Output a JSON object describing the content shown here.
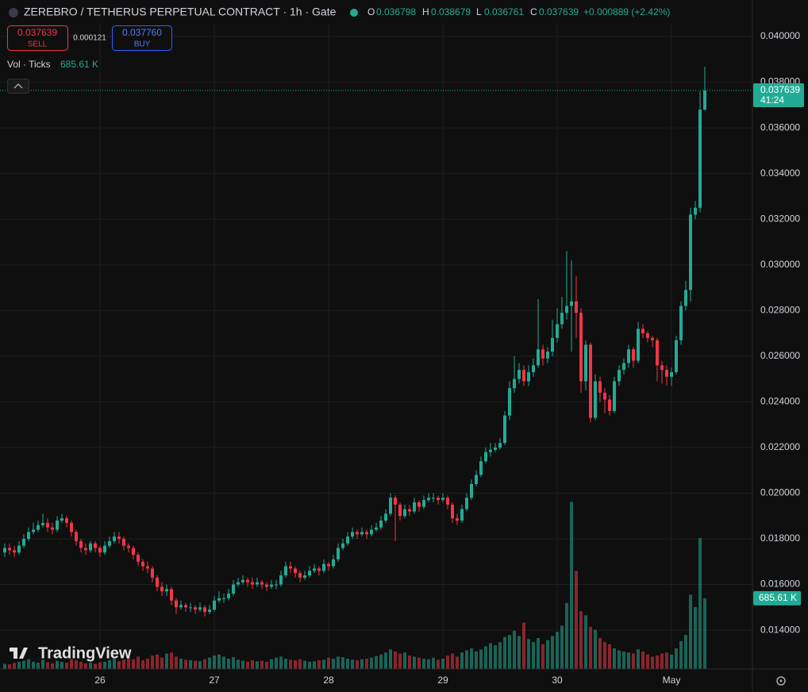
{
  "header": {
    "title": "ZEREBRO / TETHERUS PERPETUAL CONTRACT · 1h · Gate",
    "o": "O",
    "h": "H",
    "l": "L",
    "c": "C",
    "change": "+0.000889 (+2.42%)",
    "sell_label": "SELL",
    "spread": "0.000121",
    "buy_price": "0.037760",
    "buy_label": "BUY",
    "indicator": "Vol · Ticks",
    "logo": "TradingView"
  },
  "chart_data": {
    "type": "candlestick",
    "categories": [
      null,
      null,
      null,
      null,
      null,
      null,
      null,
      null,
      null,
      null,
      null,
      null,
      null,
      null,
      null,
      null,
      null,
      null,
      null,
      null,
      "26",
      null,
      null,
      null,
      null,
      null,
      null,
      null,
      null,
      null,
      null,
      null,
      null,
      null,
      null,
      null,
      null,
      null,
      null,
      null,
      null,
      null,
      null,
      null,
      "27",
      null,
      null,
      null,
      null,
      null,
      null,
      null,
      null,
      null,
      null,
      null,
      null,
      null,
      null,
      null,
      null,
      null,
      null,
      null,
      null,
      null,
      null,
      null,
      "28",
      null,
      null,
      null,
      null,
      null,
      null,
      null,
      null,
      null,
      null,
      null,
      null,
      null,
      null,
      null,
      null,
      null,
      null,
      null,
      null,
      null,
      null,
      null,
      "29",
      null,
      null,
      null,
      null,
      null,
      null,
      null,
      null,
      null,
      null,
      null,
      null,
      null,
      null,
      null,
      null,
      null,
      null,
      null,
      null,
      null,
      null,
      null,
      "30",
      null,
      null,
      null,
      null,
      null,
      null,
      null,
      null,
      null,
      null,
      null,
      null,
      null,
      null,
      null,
      null,
      null,
      null,
      null,
      null,
      null,
      null,
      null,
      "May",
      null,
      null,
      null,
      null,
      null,
      null,
      null
    ],
    "open": [
      0.0174,
      0.0176,
      0.0175,
      0.0174,
      0.0177,
      0.018,
      0.0183,
      0.0184,
      0.0186,
      0.0187,
      0.0185,
      0.0184,
      0.0188,
      0.0189,
      0.0187,
      0.0183,
      0.0179,
      0.0176,
      0.0175,
      0.0178,
      0.0176,
      0.0174,
      0.0177,
      0.0179,
      0.0181,
      0.018,
      0.0177,
      0.0176,
      0.0173,
      0.017,
      0.0168,
      0.0167,
      0.0163,
      0.0159,
      0.0157,
      0.0158,
      0.0153,
      0.015,
      0.0151,
      0.015,
      0.015,
      0.0149,
      0.015,
      0.0148,
      0.0149,
      0.0153,
      0.0154,
      0.0154,
      0.0156,
      0.016,
      0.0161,
      0.0162,
      0.0161,
      0.016,
      0.0161,
      0.016,
      0.0159,
      0.016,
      0.016,
      0.0164,
      0.0168,
      0.0167,
      0.0165,
      0.0163,
      0.0164,
      0.0166,
      0.0167,
      0.0166,
      0.0169,
      0.0168,
      0.0171,
      0.0176,
      0.0178,
      0.0181,
      0.0183,
      0.0182,
      0.0183,
      0.0182,
      0.0184,
      0.0185,
      0.0188,
      0.0191,
      0.0198,
      0.0195,
      0.019,
      0.0193,
      0.0192,
      0.0196,
      0.0194,
      0.0197,
      0.0198,
      0.0198,
      0.0197,
      0.0198,
      0.0195,
      0.0189,
      0.0188,
      0.0193,
      0.0198,
      0.0204,
      0.0208,
      0.0214,
      0.0218,
      0.0219,
      0.022,
      0.0222,
      0.0234,
      0.0246,
      0.025,
      0.0254,
      0.0249,
      0.0253,
      0.0256,
      0.0263,
      0.0259,
      0.0262,
      0.0268,
      0.0274,
      0.0279,
      0.0282,
      0.0284,
      0.0279,
      0.0249,
      0.0265,
      0.0233,
      0.0249,
      0.0244,
      0.0241,
      0.0236,
      0.0249,
      0.0254,
      0.0257,
      0.0263,
      0.0258,
      0.0272,
      0.027,
      0.0268,
      0.0267,
      0.0256,
      0.0254,
      0.0251,
      0.0253,
      0.0267,
      0.0282,
      0.0289,
      0.0322,
      0.0325,
      0.036798
    ],
    "high": [
      0.0178,
      0.0178,
      0.0177,
      0.0179,
      0.0182,
      0.0185,
      0.0187,
      0.0188,
      0.0191,
      0.0189,
      0.0187,
      0.019,
      0.0191,
      0.019,
      0.0188,
      0.0184,
      0.018,
      0.0178,
      0.0179,
      0.0179,
      0.0177,
      0.0179,
      0.0181,
      0.0183,
      0.0183,
      0.0181,
      0.0178,
      0.0177,
      0.0174,
      0.0171,
      0.017,
      0.0168,
      0.0164,
      0.0161,
      0.016,
      0.0159,
      0.0154,
      0.0153,
      0.0152,
      0.0152,
      0.0151,
      0.0152,
      0.0151,
      0.0151,
      0.0155,
      0.0157,
      0.0156,
      0.0158,
      0.0162,
      0.0163,
      0.0164,
      0.0163,
      0.0163,
      0.0163,
      0.0162,
      0.0161,
      0.0162,
      0.0162,
      0.0166,
      0.017,
      0.017,
      0.0168,
      0.0166,
      0.0166,
      0.0168,
      0.0169,
      0.0168,
      0.0171,
      0.017,
      0.0173,
      0.0178,
      0.018,
      0.0183,
      0.0185,
      0.0184,
      0.0185,
      0.0184,
      0.0186,
      0.0187,
      0.019,
      0.0193,
      0.02,
      0.0199,
      0.0196,
      0.0195,
      0.0195,
      0.0198,
      0.0197,
      0.0199,
      0.02,
      0.02,
      0.0199,
      0.02,
      0.0199,
      0.0196,
      0.0191,
      0.0195,
      0.02,
      0.0206,
      0.021,
      0.0216,
      0.022,
      0.0222,
      0.0222,
      0.0224,
      0.0236,
      0.0249,
      0.026,
      0.0257,
      0.0256,
      0.0256,
      0.0259,
      0.0285,
      0.0265,
      0.0264,
      0.0276,
      0.0281,
      0.0286,
      0.0306,
      0.0302,
      0.0295,
      0.0281,
      0.0267,
      0.0266,
      0.0252,
      0.0251,
      0.0246,
      0.0243,
      0.0251,
      0.0256,
      0.0259,
      0.0265,
      0.0264,
      0.0275,
      0.0274,
      0.0271,
      0.0269,
      0.0268,
      0.0258,
      0.0256,
      0.0255,
      0.0269,
      0.0284,
      0.0293,
      0.0325,
      0.0328,
      0.0376,
      0.038679
    ],
    "low": [
      0.0172,
      0.0173,
      0.0172,
      0.0173,
      0.0176,
      0.0179,
      0.0182,
      0.0183,
      0.0185,
      0.0183,
      0.0182,
      0.0183,
      0.0187,
      0.0185,
      0.0181,
      0.0177,
      0.0174,
      0.0173,
      0.0174,
      0.0174,
      0.0172,
      0.0173,
      0.0176,
      0.0178,
      0.0178,
      0.0175,
      0.0174,
      0.0171,
      0.0168,
      0.0166,
      0.0165,
      0.0161,
      0.0157,
      0.0155,
      0.0155,
      0.0151,
      0.0147,
      0.0149,
      0.0148,
      0.0148,
      0.0147,
      0.0148,
      0.0146,
      0.0147,
      0.0148,
      0.0152,
      0.0152,
      0.0153,
      0.0155,
      0.0159,
      0.016,
      0.0159,
      0.0158,
      0.0159,
      0.0158,
      0.0157,
      0.0158,
      0.0158,
      0.0159,
      0.0163,
      0.0165,
      0.0163,
      0.0161,
      0.0162,
      0.0163,
      0.0165,
      0.0164,
      0.0165,
      0.0166,
      0.0167,
      0.017,
      0.0175,
      0.0177,
      0.018,
      0.018,
      0.0181,
      0.018,
      0.0181,
      0.0183,
      0.0184,
      0.0187,
      0.019,
      0.0179,
      0.0188,
      0.0189,
      0.019,
      0.0191,
      0.0192,
      0.0193,
      0.0196,
      0.0196,
      0.0195,
      0.0196,
      0.0193,
      0.0187,
      0.0186,
      0.0187,
      0.0192,
      0.0197,
      0.0203,
      0.0207,
      0.0213,
      0.0216,
      0.0218,
      0.0219,
      0.0221,
      0.0232,
      0.0244,
      0.0248,
      0.0247,
      0.0247,
      0.0251,
      0.0255,
      0.0256,
      0.0257,
      0.026,
      0.0266,
      0.0272,
      0.0276,
      0.0262,
      0.0268,
      0.0244,
      0.0245,
      0.0231,
      0.0232,
      0.024,
      0.0235,
      0.0234,
      0.0235,
      0.0247,
      0.0252,
      0.0255,
      0.0255,
      0.0257,
      0.0268,
      0.0266,
      0.0264,
      0.0249,
      0.0248,
      0.0247,
      0.0247,
      0.0252,
      0.0265,
      0.028,
      0.0284,
      0.032,
      0.0323,
      0.036761
    ],
    "close": [
      0.0176,
      0.0175,
      0.0174,
      0.0177,
      0.018,
      0.0183,
      0.0184,
      0.0186,
      0.0187,
      0.0185,
      0.0184,
      0.0188,
      0.0189,
      0.0187,
      0.0183,
      0.0179,
      0.0176,
      0.0175,
      0.0178,
      0.0176,
      0.0174,
      0.0177,
      0.0179,
      0.0181,
      0.018,
      0.0177,
      0.0176,
      0.0173,
      0.017,
      0.0168,
      0.0167,
      0.0163,
      0.0159,
      0.0157,
      0.0158,
      0.0153,
      0.015,
      0.0151,
      0.015,
      0.015,
      0.0149,
      0.015,
      0.0148,
      0.0149,
      0.0153,
      0.0154,
      0.0154,
      0.0156,
      0.016,
      0.0161,
      0.0162,
      0.0161,
      0.016,
      0.0161,
      0.016,
      0.0159,
      0.016,
      0.016,
      0.0164,
      0.0168,
      0.0167,
      0.0165,
      0.0163,
      0.0164,
      0.0166,
      0.0167,
      0.0166,
      0.0169,
      0.0168,
      0.0171,
      0.0176,
      0.0178,
      0.0181,
      0.0183,
      0.0182,
      0.0183,
      0.0182,
      0.0184,
      0.0185,
      0.0188,
      0.0191,
      0.0198,
      0.0195,
      0.019,
      0.0193,
      0.0192,
      0.0196,
      0.0194,
      0.0197,
      0.0198,
      0.0198,
      0.0197,
      0.0198,
      0.0195,
      0.0189,
      0.0188,
      0.0193,
      0.0198,
      0.0204,
      0.0208,
      0.0214,
      0.0218,
      0.0219,
      0.022,
      0.0222,
      0.0234,
      0.0246,
      0.025,
      0.0254,
      0.0249,
      0.0253,
      0.0256,
      0.0263,
      0.0259,
      0.0262,
      0.0268,
      0.0274,
      0.0279,
      0.0282,
      0.0284,
      0.0279,
      0.0249,
      0.0265,
      0.0233,
      0.0249,
      0.0244,
      0.0241,
      0.0236,
      0.0249,
      0.0254,
      0.0257,
      0.0263,
      0.0258,
      0.0272,
      0.027,
      0.0268,
      0.0267,
      0.0256,
      0.0254,
      0.0251,
      0.0253,
      0.0267,
      0.0282,
      0.0289,
      0.0322,
      0.0325,
      0.036798,
      0.037639
    ],
    "volume": [
      50000,
      45000,
      60000,
      70000,
      80000,
      95000,
      70000,
      60000,
      90000,
      65000,
      55000,
      80000,
      70000,
      60000,
      95000,
      85000,
      70000,
      55000,
      60000,
      50000,
      65000,
      70000,
      85000,
      100000,
      75000,
      90000,
      110000,
      95000,
      120000,
      85000,
      100000,
      130000,
      140000,
      110000,
      150000,
      160000,
      120000,
      100000,
      90000,
      85000,
      80000,
      75000,
      95000,
      110000,
      130000,
      140000,
      120000,
      100000,
      115000,
      90000,
      80000,
      70000,
      85000,
      75000,
      80000,
      70000,
      95000,
      110000,
      120000,
      100000,
      90000,
      85000,
      95000,
      80000,
      70000,
      75000,
      85000,
      90000,
      110000,
      100000,
      120000,
      115000,
      100000,
      90000,
      85000,
      95000,
      100000,
      110000,
      125000,
      140000,
      160000,
      190000,
      170000,
      150000,
      160000,
      130000,
      120000,
      110000,
      100000,
      95000,
      110000,
      90000,
      100000,
      130000,
      150000,
      120000,
      160000,
      180000,
      200000,
      170000,
      190000,
      220000,
      250000,
      230000,
      260000,
      310000,
      330000,
      370000,
      320000,
      450000,
      290000,
      260000,
      300000,
      240000,
      280000,
      320000,
      360000,
      420000,
      640000,
      1620000,
      950000,
      560000,
      520000,
      410000,
      380000,
      300000,
      260000,
      240000,
      200000,
      180000,
      170000,
      160000,
      150000,
      190000,
      170000,
      140000,
      120000,
      130000,
      150000,
      160000,
      140000,
      200000,
      270000,
      330000,
      720000,
      600000,
      1270000,
      685610
    ],
    "volume_value_label": "685.61 K",
    "countdown": "41:24",
    "up_color": "#22ab94",
    "down_color": "#f23645",
    "ylim": [
      0.0123,
      0.0416
    ],
    "yticks": [
      {
        "value": 0.014,
        "label": "0.014000"
      },
      {
        "value": 0.016,
        "label": "0.016000"
      },
      {
        "value": 0.018,
        "label": "0.018000"
      },
      {
        "value": 0.02,
        "label": "0.020000"
      },
      {
        "value": 0.022,
        "label": "0.022000"
      },
      {
        "value": 0.024,
        "label": "0.024000"
      },
      {
        "value": 0.026,
        "label": "0.026000"
      },
      {
        "value": 0.028,
        "label": "0.028000"
      },
      {
        "value": 0.03,
        "label": "0.030000"
      },
      {
        "value": 0.032,
        "label": "0.032000"
      },
      {
        "value": 0.034,
        "label": "0.034000"
      },
      {
        "value": 0.036,
        "label": "0.036000"
      },
      {
        "value": 0.038,
        "label": "0.038000"
      },
      {
        "value": 0.04,
        "label": "0.040000"
      }
    ],
    "vlim": [
      0,
      2000000
    ],
    "grid": true
  }
}
